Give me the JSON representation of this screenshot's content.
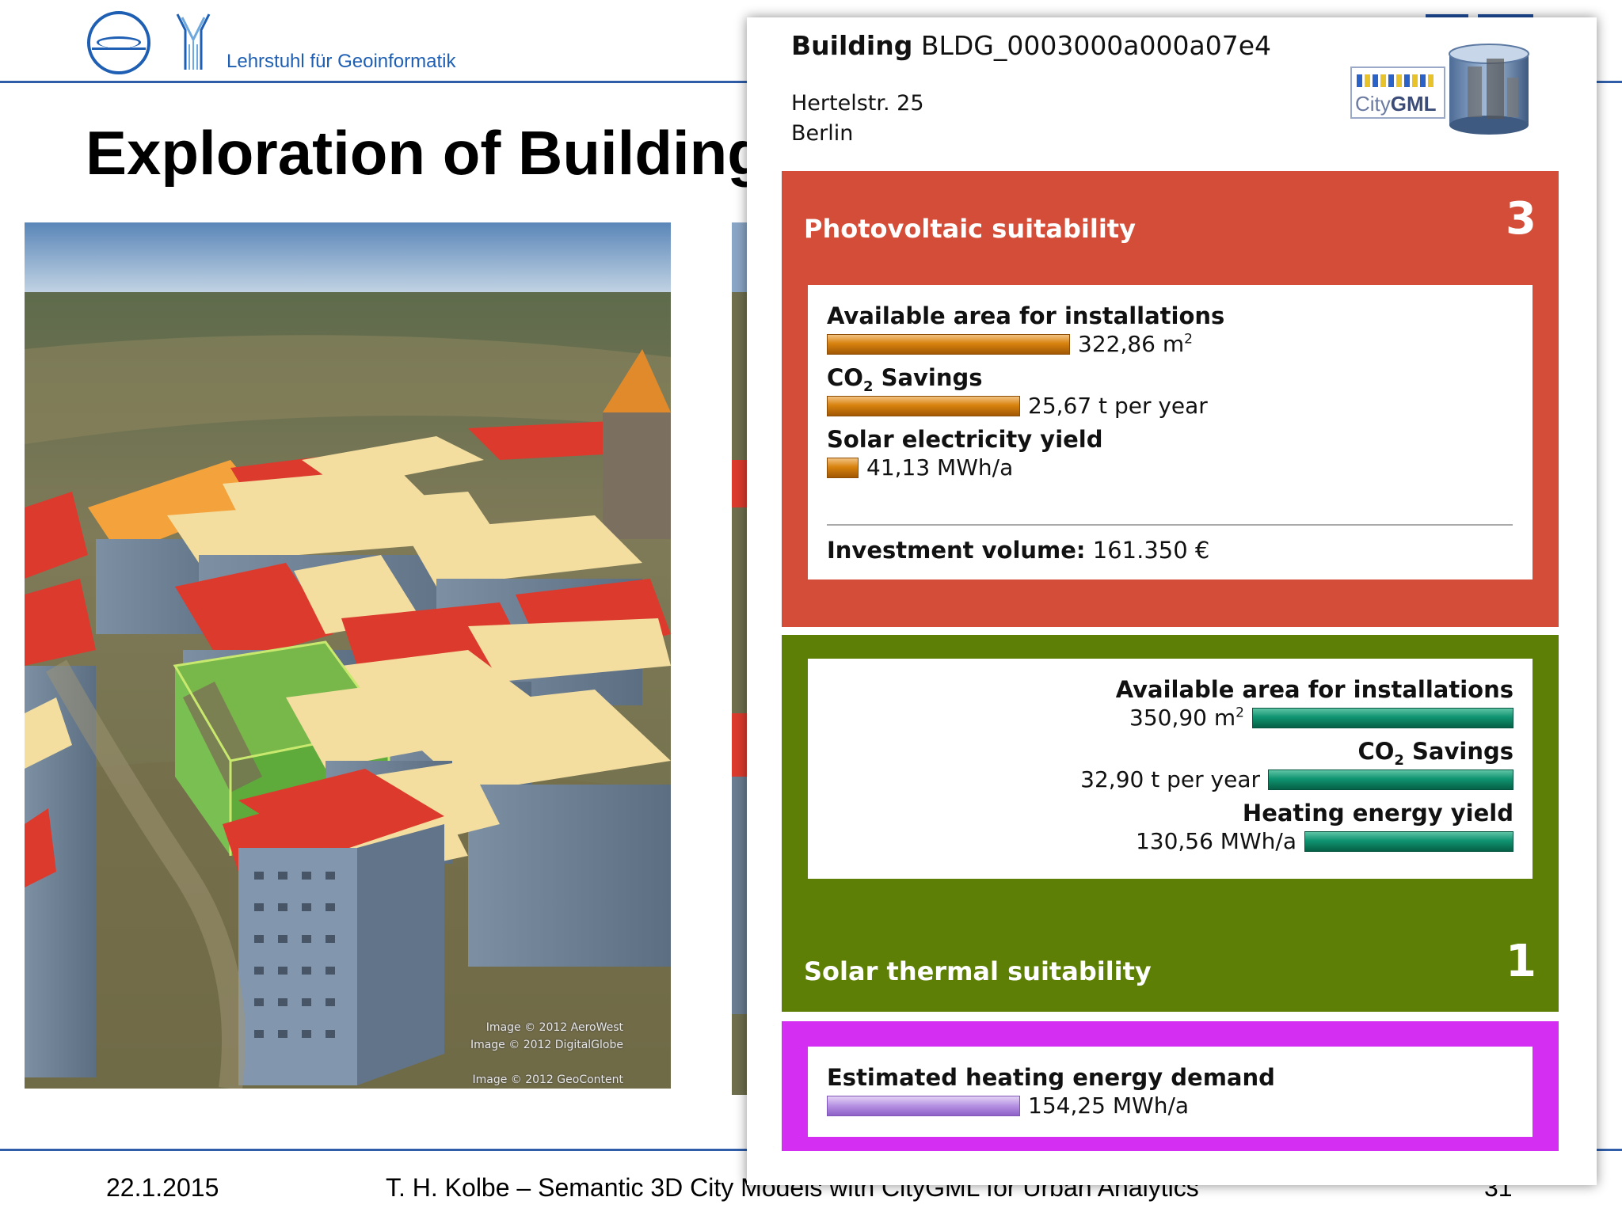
{
  "header": {
    "chair_name": "Lehrstuhl für Geoinformatik"
  },
  "slide": {
    "title": "Exploration of Building",
    "image_credits": [
      "Image © 2012 AeroWest",
      "Image © 2012 DigitalGlobe",
      "Image © 2012 GeoContent"
    ]
  },
  "footer": {
    "date": "22.1.2015",
    "text": "T. H. Kolbe – Semantic 3D City Models with CityGML for Urban Analytics",
    "page": "31"
  },
  "popup": {
    "building_label": "Building",
    "building_id": "BLDG_0003000a000a07e4",
    "street": "Hertelstr. 25",
    "city": "Berlin",
    "logo_text_a": "City",
    "logo_text_b": "GML",
    "photovoltaic": {
      "label": "Photovoltaic suitability",
      "score": "3",
      "color": "#d44d38",
      "bar_color": "#d8830e",
      "metrics": [
        {
          "label": "Available area for installations",
          "value": "322,86 m",
          "unit_sup": "2",
          "fraction": 0.93
        },
        {
          "label_main": "CO",
          "label_sub": "2",
          "label_rest": " Savings",
          "value": "25,67 t per year",
          "fraction": 0.74
        },
        {
          "label": "Solar electricity yield",
          "value": "41,13 MWh/a",
          "fraction": 0.12
        }
      ],
      "investment_label": "Investment volume:",
      "investment_value": "161.350 €"
    },
    "solar_thermal": {
      "label": "Solar thermal suitability",
      "score": "1",
      "color": "#5d7f05",
      "bar_color": "#0f9471",
      "metrics": [
        {
          "label": "Available area for installations",
          "value": "350,90 m",
          "unit_sup": "2",
          "fraction": 1.0
        },
        {
          "label_main": "CO",
          "label_sub": "2",
          "label_rest": " Savings",
          "value": "32,90 t per year",
          "fraction": 0.94
        },
        {
          "label": "Heating energy yield",
          "value": "130,56 MWh/a",
          "fraction": 0.8
        }
      ]
    },
    "heating_demand": {
      "label": "Estimated heating energy demand",
      "value": "154,25 MWh/a",
      "color": "#d52ef3",
      "bar_color": "#b590e2",
      "fraction": 0.74
    }
  }
}
